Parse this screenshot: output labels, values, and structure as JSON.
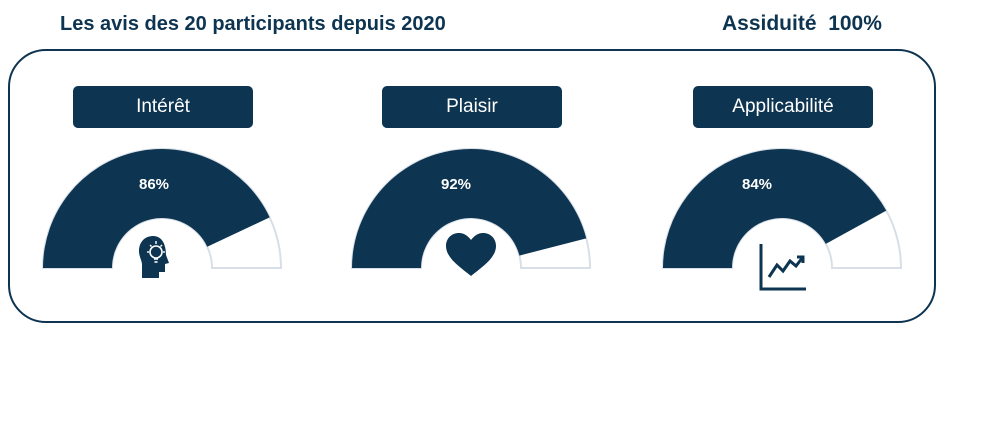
{
  "header": {
    "title": "Les avis des 20 participants depuis 2020",
    "attendance": "Assiduité  100%"
  },
  "colors": {
    "fill": "#0d3450",
    "track": "#ffffff",
    "track_border": "#d8dfe8"
  },
  "chart_data": [
    {
      "type": "gauge",
      "title": "Intérêt",
      "value": 86,
      "value_label": "86%",
      "max": 100,
      "icon": "head-lightbulb-icon"
    },
    {
      "type": "gauge",
      "title": "Plaisir",
      "value": 92,
      "value_label": "92%",
      "max": 100,
      "icon": "heart-icon"
    },
    {
      "type": "gauge",
      "title": "Applicabilité",
      "value": 84,
      "value_label": "84%",
      "max": 100,
      "icon": "trend-chart-icon"
    }
  ]
}
